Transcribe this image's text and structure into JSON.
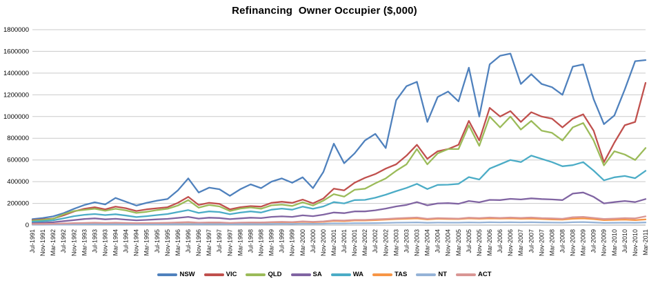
{
  "window": {
    "background": "#ffffff"
  },
  "chart_data": {
    "type": "line",
    "title": "Refinancing  Owner Occupier ($,000)",
    "xlabel": "",
    "ylabel": "",
    "ylim": [
      0,
      1800000
    ],
    "ytick_step": 200000,
    "grid": true,
    "grid_color": "#c9c9c9",
    "axis_color": "#a6a6a6",
    "legend_position": "bottom",
    "x": [
      "Jul-1991",
      "Nov-1991",
      "Mar-1992",
      "Jul-1992",
      "Nov-1992",
      "Mar-1993",
      "Jul-1993",
      "Nov-1993",
      "Mar-1994",
      "Jul-1994",
      "Nov-1994",
      "Mar-1995",
      "Jul-1995",
      "Nov-1995",
      "Mar-1996",
      "Jul-1996",
      "Nov-1996",
      "Mar-1997",
      "Jul-1997",
      "Nov-1997",
      "Mar-1998",
      "Jul-1998",
      "Nov-1998",
      "Mar-1999",
      "Jul-1999",
      "Nov-1999",
      "Mar-2000",
      "Jul-2000",
      "Nov-2000",
      "Mar-2001",
      "Jul-2001",
      "Nov-2001",
      "Mar-2002",
      "Jul-2002",
      "Nov-2002",
      "Mar-2003",
      "Jul-2003",
      "Nov-2003",
      "Mar-2004",
      "Jul-2004",
      "Nov-2004",
      "Mar-2005",
      "Jul-2005",
      "Nov-2005",
      "Mar-2006",
      "Jul-2006",
      "Nov-2006",
      "Mar-2007",
      "Jul-2007",
      "Nov-2007",
      "Mar-2008",
      "Jul-2008",
      "Nov-2008",
      "Mar-2009",
      "Jul-2009",
      "Nov-2009",
      "Mar-2010",
      "Jul-2010",
      "Nov-2010",
      "Mar-2011"
    ],
    "series": [
      {
        "name": "NSW",
        "color": "#4f81bd",
        "values": [
          55000,
          65000,
          80000,
          110000,
          150000,
          185000,
          210000,
          190000,
          250000,
          215000,
          180000,
          205000,
          225000,
          240000,
          320000,
          430000,
          300000,
          345000,
          330000,
          270000,
          330000,
          375000,
          340000,
          400000,
          430000,
          390000,
          440000,
          340000,
          490000,
          750000,
          570000,
          660000,
          780000,
          840000,
          710000,
          1150000,
          1280000,
          1320000,
          950000,
          1180000,
          1230000,
          1140000,
          1450000,
          1000000,
          1480000,
          1560000,
          1580000,
          1300000,
          1390000,
          1300000,
          1270000,
          1200000,
          1460000,
          1480000,
          1160000,
          930000,
          1010000,
          1250000,
          1510000,
          1520000
        ]
      },
      {
        "name": "VIC",
        "color": "#c0504d",
        "values": [
          45000,
          52000,
          60000,
          90000,
          125000,
          150000,
          165000,
          145000,
          170000,
          155000,
          130000,
          145000,
          155000,
          165000,
          205000,
          260000,
          185000,
          205000,
          195000,
          145000,
          165000,
          175000,
          170000,
          205000,
          215000,
          205000,
          235000,
          200000,
          245000,
          335000,
          320000,
          390000,
          435000,
          470000,
          520000,
          560000,
          640000,
          740000,
          610000,
          680000,
          700000,
          740000,
          960000,
          780000,
          1080000,
          1000000,
          1050000,
          950000,
          1040000,
          1000000,
          980000,
          900000,
          980000,
          1020000,
          870000,
          580000,
          760000,
          920000,
          950000,
          1310000
        ]
      },
      {
        "name": "QLD",
        "color": "#9bbb59",
        "values": [
          40000,
          48000,
          58000,
          100000,
          130000,
          140000,
          150000,
          132000,
          150000,
          135000,
          112000,
          122000,
          138000,
          150000,
          180000,
          230000,
          160000,
          185000,
          172000,
          130000,
          152000,
          162000,
          150000,
          182000,
          188000,
          176000,
          210000,
          180000,
          225000,
          285000,
          262000,
          325000,
          335000,
          385000,
          430000,
          500000,
          560000,
          700000,
          560000,
          660000,
          700000,
          700000,
          920000,
          730000,
          1000000,
          900000,
          1000000,
          880000,
          960000,
          870000,
          850000,
          780000,
          900000,
          940000,
          780000,
          550000,
          680000,
          650000,
          600000,
          710000
        ]
      },
      {
        "name": "SA",
        "color": "#8064a2",
        "values": [
          20000,
          22000,
          26000,
          36000,
          46000,
          56000,
          62000,
          53000,
          58000,
          50000,
          44000,
          48000,
          53000,
          57000,
          66000,
          76000,
          60000,
          68000,
          65000,
          55000,
          62000,
          68000,
          64000,
          76000,
          80000,
          76000,
          90000,
          82000,
          96000,
          116000,
          110000,
          126000,
          126000,
          136000,
          152000,
          172000,
          186000,
          212000,
          182000,
          200000,
          202000,
          196000,
          222000,
          210000,
          232000,
          230000,
          242000,
          236000,
          246000,
          240000,
          236000,
          230000,
          290000,
          300000,
          260000,
          200000,
          212000,
          222000,
          212000,
          240000
        ]
      },
      {
        "name": "WA",
        "color": "#4bacc6",
        "values": [
          32000,
          36000,
          44000,
          62000,
          82000,
          95000,
          102000,
          92000,
          100000,
          88000,
          74000,
          82000,
          92000,
          102000,
          120000,
          138000,
          112000,
          126000,
          120000,
          100000,
          115000,
          126000,
          116000,
          142000,
          152000,
          142000,
          170000,
          150000,
          172000,
          212000,
          200000,
          230000,
          232000,
          252000,
          280000,
          312000,
          342000,
          380000,
          332000,
          370000,
          372000,
          380000,
          442000,
          420000,
          520000,
          560000,
          600000,
          580000,
          640000,
          610000,
          580000,
          542000,
          552000,
          580000,
          502000,
          412000,
          440000,
          452000,
          432000,
          500000
        ]
      },
      {
        "name": "TAS",
        "color": "#f79646",
        "values": [
          8000,
          9000,
          10000,
          13000,
          16000,
          18000,
          20000,
          18000,
          20000,
          18000,
          16000,
          17000,
          18000,
          19000,
          22000,
          25000,
          20000,
          22000,
          22000,
          18000,
          20000,
          22000,
          21000,
          25000,
          26000,
          25000,
          30000,
          27000,
          30000,
          38000,
          36000,
          42000,
          42000,
          46000,
          50000,
          55000,
          58000,
          62000,
          52000,
          58000,
          56000,
          55000,
          62000,
          58000,
          62000,
          60000,
          62000,
          58000,
          60000,
          56000,
          52000,
          50000,
          58000,
          62000,
          55000,
          45000,
          48000,
          50000,
          46000,
          52000
        ]
      },
      {
        "name": "NT",
        "color": "#95b3d7",
        "values": [
          3000,
          3000,
          4000,
          5000,
          6000,
          7000,
          8000,
          7000,
          8000,
          7000,
          6000,
          7000,
          7000,
          8000,
          9000,
          10000,
          8000,
          9000,
          9000,
          8000,
          9000,
          10000,
          9000,
          11000,
          12000,
          11000,
          13000,
          12000,
          13000,
          16000,
          15000,
          17000,
          17000,
          18000,
          20000,
          22000,
          23000,
          25000,
          21000,
          23000,
          22000,
          22000,
          25000,
          23000,
          26000,
          25000,
          26000,
          25000,
          26000,
          24000,
          23000,
          22000,
          26000,
          28000,
          24000,
          20000,
          21000,
          22000,
          21000,
          24000
        ]
      },
      {
        "name": "ACT",
        "color": "#d99694",
        "values": [
          10000,
          11000,
          12000,
          15000,
          18000,
          20000,
          22000,
          20000,
          22000,
          20000,
          18000,
          19000,
          20000,
          21000,
          24000,
          28000,
          22000,
          25000,
          24000,
          20000,
          23000,
          25000,
          24000,
          28000,
          30000,
          28000,
          34000,
          30000,
          34000,
          44000,
          42000,
          48000,
          48000,
          52000,
          56000,
          62000,
          66000,
          70000,
          58000,
          64000,
          62000,
          60000,
          68000,
          64000,
          70000,
          66000,
          70000,
          66000,
          70000,
          64000,
          62000,
          58000,
          72000,
          76000,
          66000,
          56000,
          60000,
          64000,
          62000,
          80000
        ]
      }
    ]
  }
}
